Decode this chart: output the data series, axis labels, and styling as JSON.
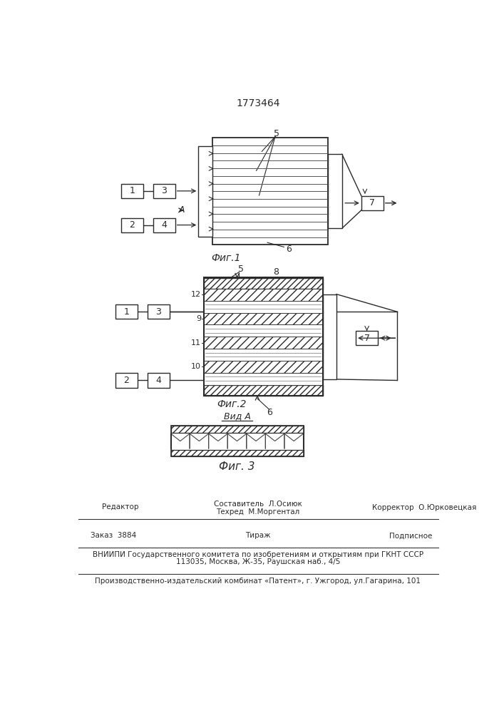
{
  "patent_number": "1773464",
  "bg_color": "#ffffff",
  "line_color": "#2a2a2a",
  "fig1_caption": "Фиг.1",
  "fig2_caption": "Фиг.2",
  "fig3_caption": "Фиг. 3",
  "vid_A_label": "Вид A",
  "footer_line0": "Составитель  Л.Осиюк",
  "footer_line1": "Техред  М.Моргентал",
  "footer_line2": "Корректор  О.Юрковецкая",
  "footer_line3": "Редактор",
  "footer_line4": "Заказ  3884",
  "footer_line5": "Тираж",
  "footer_line6": "Подписное",
  "footer_line7": "ВНИИПИ Государственного комитета по изобретениям и открытиям при ГКНТ СССР",
  "footer_line8": "113035, Москва, Ж-35, Раушская наб., 4/5",
  "footer_line9": "Производственно-издательский комбинат «Патент», г. Ужгород, ул.Гагарина, 101"
}
